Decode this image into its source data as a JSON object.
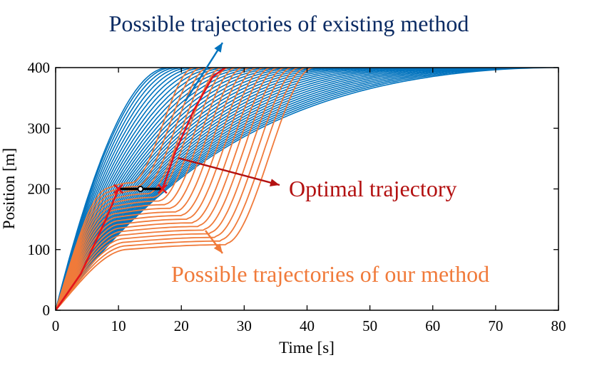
{
  "chart_data": {
    "type": "line",
    "title": "",
    "xlabel": "Time [s]",
    "ylabel": "Position [m]",
    "xlim": [
      0,
      80
    ],
    "ylim": [
      0,
      400
    ],
    "xticks": [
      0,
      10,
      20,
      30,
      40,
      50,
      60,
      70,
      80
    ],
    "yticks": [
      0,
      100,
      200,
      300,
      400
    ],
    "grid": false,
    "colors": {
      "existing": "#0072BD",
      "ours": "#F07A3A",
      "optimal": "#E3141C",
      "annotation_existing": "#0B2B63",
      "annotation_optimal": "#B31111",
      "annotation_ours": "#F07A3A",
      "stop_segment": "#000000"
    },
    "series": [
      {
        "group": "existing",
        "count": 40,
        "description_points": "family of smooth S-curves from (0,0) to 400 m; arrival time ranges from about 18 s to 80 s"
      },
      {
        "group": "ours",
        "count": 18,
        "description_points": "family of curves with a plateau near 100-200 m; arrival time ranges from about 18 s to 43 s"
      },
      {
        "group": "optimal",
        "points": [
          [
            0,
            0
          ],
          [
            4,
            60
          ],
          [
            8,
            150
          ],
          [
            10,
            200
          ],
          [
            17,
            200
          ],
          [
            19,
            260
          ],
          [
            22,
            330
          ],
          [
            25,
            385
          ],
          [
            27,
            400
          ]
        ]
      }
    ],
    "stop_segment": {
      "x": [
        10,
        17
      ],
      "y": 200,
      "marker_x": 13.5
    },
    "annotations": {
      "existing": "Possible trajectories of existing method",
      "optimal": "Optimal trajectory",
      "ours": "Possible trajectories of our method"
    }
  }
}
